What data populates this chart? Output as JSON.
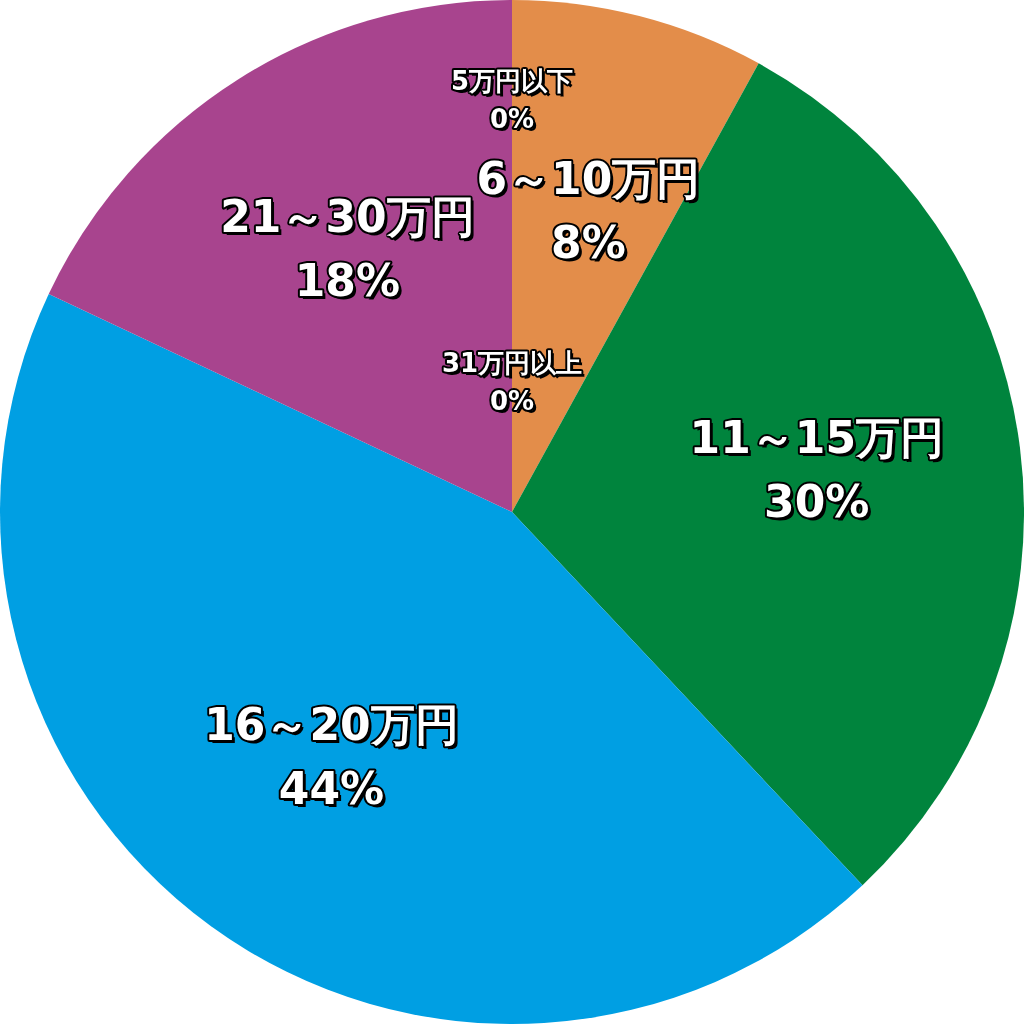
{
  "chart_data": {
    "type": "pie",
    "categories": [
      "5万円以下",
      "6～10万円",
      "11～15万円",
      "16～20万円",
      "21～30万円",
      "31万円以上"
    ],
    "values": [
      0,
      8,
      30,
      44,
      18,
      0
    ],
    "value_labels": [
      "0%",
      "8%",
      "30%",
      "44%",
      "18%",
      "0%"
    ],
    "colors": [
      "#e38d4a",
      "#e38d4a",
      "#00843d",
      "#009fe3",
      "#a8448e",
      "#a8448e"
    ],
    "legend": false
  }
}
